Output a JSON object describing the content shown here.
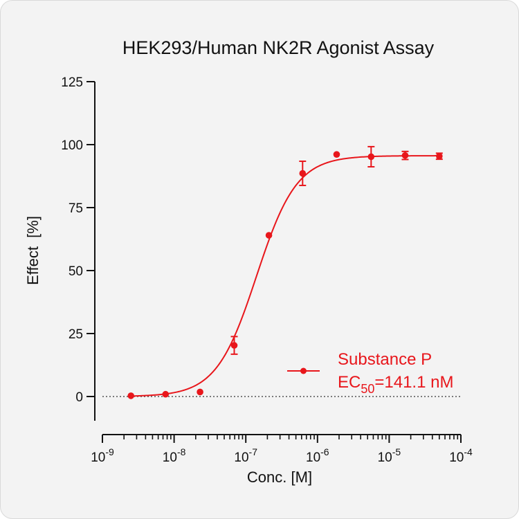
{
  "chart_data": {
    "type": "scatter",
    "title": "HEK293/Human NK2R Agonist Assay",
    "xlabel": "Conc. [M]",
    "ylabel": "Effect  [%]",
    "x_scale": "log",
    "xlim": [
      1e-09,
      0.0001
    ],
    "ylim": [
      -10,
      125
    ],
    "yticks": [
      "0",
      "25",
      "50",
      "75",
      "100",
      "125"
    ],
    "xticks": [
      {
        "base": "10",
        "exp": "-9"
      },
      {
        "base": "10",
        "exp": "-8"
      },
      {
        "base": "10",
        "exp": "-7"
      },
      {
        "base": "10",
        "exp": "-6"
      },
      {
        "base": "10",
        "exp": "-5"
      },
      {
        "base": "10",
        "exp": "-4"
      }
    ],
    "baseline_y": 0,
    "grid": false,
    "legend_position": "bottom-right",
    "series": [
      {
        "name": "Substance P",
        "color": "#e8161b",
        "fit": "sigmoidal dose-response",
        "ec50_label": {
          "prefix": "EC",
          "sub": "50",
          "suffix": "=141.1 nM"
        },
        "ec50_M": 1.411e-07,
        "top": 95.6,
        "bottom": 0,
        "hill": 1.55,
        "points": [
          {
            "x": 2.5e-09,
            "y": 0.3,
            "err": 0
          },
          {
            "x": 7.6e-09,
            "y": 0.9,
            "err": 0
          },
          {
            "x": 2.3e-08,
            "y": 1.8,
            "err": 0
          },
          {
            "x": 6.9e-08,
            "y": 20.3,
            "err": 3.5
          },
          {
            "x": 2.1e-07,
            "y": 64.0,
            "err": 0
          },
          {
            "x": 6.2e-07,
            "y": 88.6,
            "err": 4.8
          },
          {
            "x": 1.85e-06,
            "y": 96.1,
            "err": 0
          },
          {
            "x": 5.6e-06,
            "y": 95.2,
            "err": 4.0
          },
          {
            "x": 1.67e-05,
            "y": 95.7,
            "err": 1.6
          },
          {
            "x": 5e-05,
            "y": 95.4,
            "err": 1.2
          }
        ]
      }
    ]
  }
}
